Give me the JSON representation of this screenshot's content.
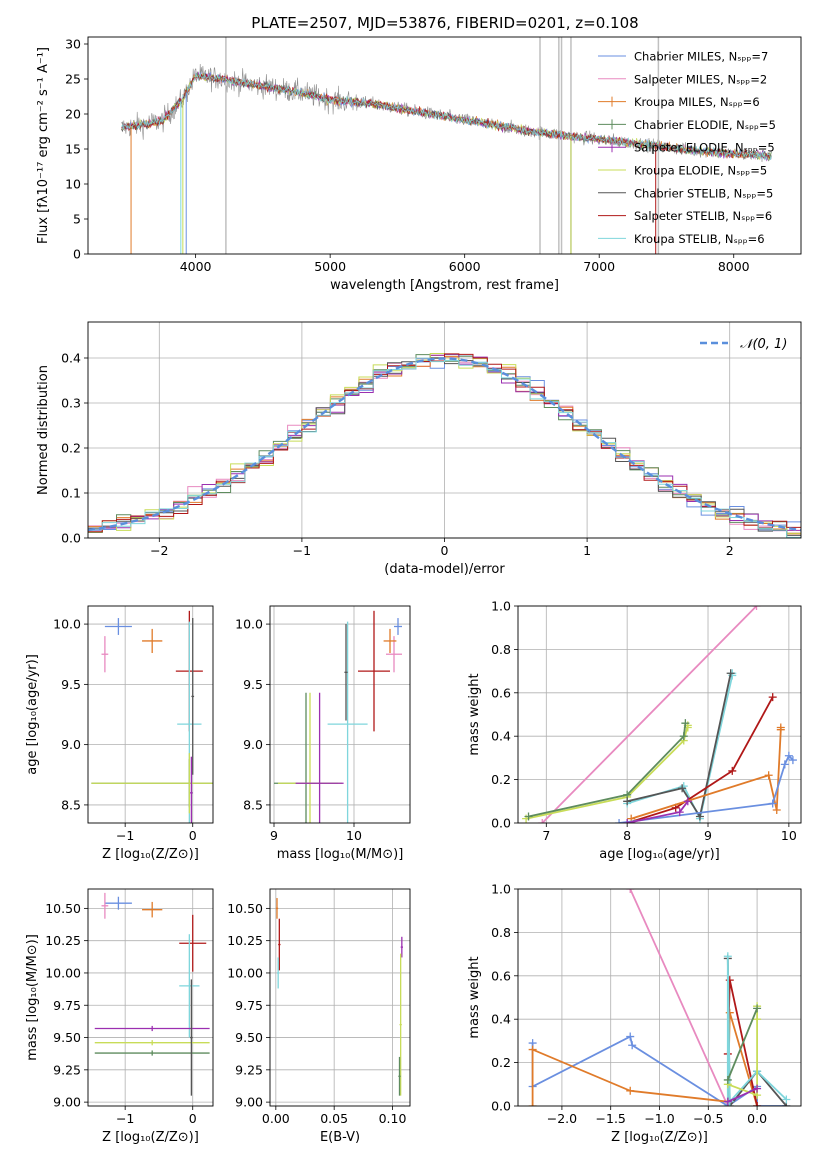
{
  "figure_title": "PLATE=2507, MJD=53876, FIBERID=0201, z=0.108",
  "colors": {
    "c0": "#6a8fe0",
    "c1": "#e88ac0",
    "c2": "#e07b2a",
    "c3": "#5e8c5e",
    "c4": "#9b2fb0",
    "c5": "#c8dc58",
    "c6": "#555555",
    "c7": "#b01818",
    "c8": "#7fd6dc",
    "c9": "#b8b8b8",
    "gauss": "#5a8fdc"
  },
  "chart_data": [
    {
      "id": "spectrum",
      "type": "line",
      "xlabel": "wavelength [Angstrom, rest frame]",
      "ylabel": "Flux [fλ10⁻¹⁷ erg cm⁻² s⁻¹ A⁻¹]",
      "xlim": [
        3200,
        8500
      ],
      "ylim": [
        0,
        31
      ],
      "xticks": [
        4000,
        5000,
        6000,
        7000,
        8000
      ],
      "yticks": [
        0,
        5,
        10,
        15,
        20,
        25,
        30
      ],
      "grid": false,
      "legend_position": "top-right",
      "series": [
        {
          "name": "Chabrier MILES, Nₛₚₚ=7",
          "color": "c0",
          "marker": "line"
        },
        {
          "name": "Salpeter MILES, Nₛₚₚ=2",
          "color": "c1",
          "marker": "line"
        },
        {
          "name": "Kroupa MILES, Nₛₚₚ=6",
          "color": "c2",
          "marker": "plus"
        },
        {
          "name": "Chabrier ELODIE, Nₛₚₚ=5",
          "color": "c3",
          "marker": "plus"
        },
        {
          "name": "Salpeter ELODIE, Nₛₚₚ=5",
          "color": "c4",
          "marker": "plus"
        },
        {
          "name": "Kroupa ELODIE, Nₛₚₚ=5",
          "color": "c5",
          "marker": "line"
        },
        {
          "name": "Chabrier STELIB, Nₛₚₚ=5",
          "color": "c6",
          "marker": "line"
        },
        {
          "name": "Salpeter STELIB, Nₛₚₚ=6",
          "color": "c7",
          "marker": "line"
        },
        {
          "name": "Kroupa STELIB, Nₛₚₚ=6",
          "color": "c8",
          "marker": "line"
        }
      ],
      "continuum": {
        "x": [
          3450,
          3600,
          3750,
          3900,
          4000,
          4200,
          4500,
          4800,
          5000,
          5300,
          5600,
          5900,
          6200,
          6500,
          6800,
          7100,
          7400,
          7700,
          8000,
          8280
        ],
        "y": [
          18,
          18.5,
          19,
          22,
          25.5,
          25,
          24,
          23,
          22,
          21.5,
          20.5,
          19.5,
          18.5,
          17.5,
          16.8,
          16.2,
          15.5,
          14.8,
          14.3,
          14
        ]
      },
      "data_range": [
        3450,
        8280
      ]
    },
    {
      "id": "residuals",
      "type": "area",
      "xlabel": "(data-model)/error",
      "ylabel": "Normed distribution",
      "xlim": [
        -2.5,
        2.5
      ],
      "ylim": [
        0,
        0.48
      ],
      "xticks": [
        -2,
        -1,
        0,
        1,
        2
      ],
      "yticks": [
        0,
        0.1,
        0.2,
        0.3,
        0.4
      ],
      "grid": true,
      "legend_position": "top-right",
      "gauss_label": "𝒩(0, 1)",
      "bin_width": 0.1,
      "histogram_colors": [
        "c0",
        "c1",
        "c2",
        "c3",
        "c4",
        "c5",
        "c6",
        "c7",
        "c8"
      ]
    },
    {
      "id": "age_vs_Z",
      "type": "scatter",
      "xlabel": "Z [log₁₀(Z/Z⊙)]",
      "ylabel": "age  [log₁₀(age/yr)]",
      "xlim": [
        -1.55,
        0.3
      ],
      "ylim": [
        8.35,
        10.15
      ],
      "xticks": [
        -1,
        0
      ],
      "yticks": [
        8.5,
        9.0,
        9.5,
        10.0
      ],
      "grid": true,
      "points": [
        {
          "c": "c0",
          "x": -1.1,
          "y": 9.98,
          "xerr": 0.2,
          "yerr": 0.07
        },
        {
          "c": "c1",
          "x": -1.3,
          "y": 9.75,
          "xerr": 0.05,
          "yerr": 0.15
        },
        {
          "c": "c2",
          "x": -0.6,
          "y": 9.86,
          "xerr": 0.15,
          "yerr": 0.1
        },
        {
          "c": "c7",
          "x": -0.05,
          "y": 9.61,
          "xerr": 0.2,
          "yerr": 0.5
        },
        {
          "c": "c8",
          "x": -0.05,
          "y": 9.17,
          "xerr": 0.18,
          "yerr": 0.85
        },
        {
          "c": "c3",
          "x": -0.05,
          "y": 8.68,
          "xerr": 1.45,
          "yerr": 0.2
        },
        {
          "c": "c5",
          "x": -0.05,
          "y": 8.68,
          "xerr": 1.45,
          "yerr": 0.25
        },
        {
          "c": "c6",
          "x": 0.0,
          "y": 9.4,
          "xerr": 0.02,
          "yerr": 0.65
        },
        {
          "c": "c4",
          "x": -0.02,
          "y": 8.6,
          "xerr": 0.02,
          "yerr": 0.3
        }
      ]
    },
    {
      "id": "age_vs_mass",
      "type": "scatter",
      "xlabel": "mass [log₁₀(M/M⊙)]",
      "ylabel": "",
      "xlim": [
        8.95,
        10.7
      ],
      "ylim": [
        8.35,
        10.15
      ],
      "xticks": [
        9,
        10
      ],
      "yticks": [
        8.5,
        9.0,
        9.5,
        10.0
      ],
      "grid": true,
      "points": [
        {
          "c": "c0",
          "x": 10.55,
          "y": 9.98,
          "xerr": 0.05,
          "yerr": 0.07
        },
        {
          "c": "c1",
          "x": 10.5,
          "y": 9.75,
          "xerr": 0.1,
          "yerr": 0.15
        },
        {
          "c": "c2",
          "x": 10.45,
          "y": 9.86,
          "xerr": 0.08,
          "yerr": 0.1
        },
        {
          "c": "c7",
          "x": 10.25,
          "y": 9.61,
          "xerr": 0.2,
          "yerr": 0.5
        },
        {
          "c": "c8",
          "x": 9.92,
          "y": 9.17,
          "xerr": 0.25,
          "yerr": 0.85
        },
        {
          "c": "c3",
          "x": 9.4,
          "y": 8.68,
          "xerr": 0.4,
          "yerr": 0.75
        },
        {
          "c": "c5",
          "x": 9.45,
          "y": 8.68,
          "xerr": 0.4,
          "yerr": 0.75
        },
        {
          "c": "c4",
          "x": 9.57,
          "y": 8.68,
          "xerr": 0.3,
          "yerr": 0.75
        },
        {
          "c": "c6",
          "x": 9.9,
          "y": 9.6,
          "xerr": 0.02,
          "yerr": 0.4
        }
      ]
    },
    {
      "id": "weight_vs_age",
      "type": "line",
      "xlabel": "age  [log₁₀(age/yr)]",
      "ylabel": "mass weight",
      "xlim": [
        6.65,
        10.15
      ],
      "ylim": [
        0,
        1
      ],
      "xticks": [
        7,
        8,
        9,
        10
      ],
      "yticks": [
        0.0,
        0.2,
        0.4,
        0.6,
        0.8,
        1.0
      ],
      "grid": true,
      "series": [
        {
          "c": "c1",
          "x": [
            6.95,
            9.6
          ],
          "y": [
            0.0,
            1.0
          ]
        },
        {
          "c": "c5",
          "x": [
            6.75,
            8.0,
            8.7,
            8.75,
            8.75
          ],
          "y": [
            0.02,
            0.12,
            0.38,
            0.45,
            0.44
          ]
        },
        {
          "c": "c3",
          "x": [
            6.78,
            8.0,
            8.7,
            8.72
          ],
          "y": [
            0.03,
            0.13,
            0.4,
            0.46
          ]
        },
        {
          "c": "c8",
          "x": [
            8.0,
            8.7,
            8.9,
            9.3,
            9.3
          ],
          "y": [
            0.09,
            0.17,
            0.02,
            0.68,
            0.69
          ]
        },
        {
          "c": "c6",
          "x": [
            8.0,
            8.68,
            8.9,
            9.28
          ],
          "y": [
            0.1,
            0.16,
            0.03,
            0.69
          ]
        },
        {
          "c": "c7",
          "x": [
            8.0,
            8.6,
            9.3,
            9.8
          ],
          "y": [
            0.0,
            0.07,
            0.24,
            0.58
          ]
        },
        {
          "c": "c2",
          "x": [
            8.05,
            9.75,
            9.85,
            9.9,
            9.9
          ],
          "y": [
            0.02,
            0.22,
            0.06,
            0.43,
            0.44
          ]
        },
        {
          "c": "c0",
          "x": [
            7.9,
            9.8,
            9.95,
            10.0,
            10.05
          ],
          "y": [
            0.0,
            0.09,
            0.27,
            0.31,
            0.29
          ]
        },
        {
          "c": "c4",
          "x": [
            8.0,
            8.65,
            8.75
          ],
          "y": [
            0.0,
            0.05,
            0.1
          ]
        }
      ]
    },
    {
      "id": "mass_vs_Z",
      "type": "scatter",
      "xlabel": "Z [log₁₀(Z/Z⊙)]",
      "ylabel": "mass [log₁₀(M/M⊙)]",
      "xlim": [
        -1.55,
        0.3
      ],
      "ylim": [
        8.97,
        10.65
      ],
      "xticks": [
        -1,
        0
      ],
      "yticks": [
        9.0,
        9.25,
        9.5,
        9.75,
        10.0,
        10.25,
        10.5
      ],
      "grid": true,
      "points": [
        {
          "c": "c0",
          "x": -1.1,
          "y": 10.54,
          "xerr": 0.2,
          "yerr": 0.05
        },
        {
          "c": "c1",
          "x": -1.3,
          "y": 10.52,
          "xerr": 0.05,
          "yerr": 0.1
        },
        {
          "c": "c2",
          "x": -0.6,
          "y": 10.49,
          "xerr": 0.15,
          "yerr": 0.06
        },
        {
          "c": "c7",
          "x": 0.0,
          "y": 10.23,
          "xerr": 0.2,
          "yerr": 0.22
        },
        {
          "c": "c8",
          "x": -0.05,
          "y": 9.9,
          "xerr": 0.15,
          "yerr": 0.4
        },
        {
          "c": "c4",
          "x": -0.6,
          "y": 9.57,
          "xerr": 0.85,
          "yerr": 0.02
        },
        {
          "c": "c5",
          "x": -0.6,
          "y": 9.46,
          "xerr": 0.85,
          "yerr": 0.02
        },
        {
          "c": "c3",
          "x": -0.6,
          "y": 9.38,
          "xerr": 0.85,
          "yerr": 0.02
        },
        {
          "c": "c6",
          "x": -0.02,
          "y": 9.5,
          "xerr": 0.02,
          "yerr": 0.45
        }
      ]
    },
    {
      "id": "mass_vs_ebv",
      "type": "scatter",
      "xlabel": "E(B-V)",
      "ylabel": "",
      "xlim": [
        -0.005,
        0.115
      ],
      "ylim": [
        8.97,
        10.65
      ],
      "xticks": [
        0.0,
        0.05,
        0.1
      ],
      "yticks": [
        9.0,
        9.25,
        9.5,
        9.75,
        10.0,
        10.25,
        10.5
      ],
      "grid": true,
      "points": [
        {
          "c": "c2",
          "x": 0.001,
          "y": 10.5,
          "xerr": 0.001,
          "yerr": 0.08
        },
        {
          "c": "c7",
          "x": 0.003,
          "y": 10.22,
          "xerr": 0.001,
          "yerr": 0.2
        },
        {
          "c": "c8",
          "x": 0.002,
          "y": 10.0,
          "xerr": 0.001,
          "yerr": 0.12
        },
        {
          "c": "c4",
          "x": 0.108,
          "y": 10.2,
          "xerr": 0.001,
          "yerr": 0.08
        },
        {
          "c": "c5",
          "x": 0.107,
          "y": 9.6,
          "xerr": 0.001,
          "yerr": 0.55
        },
        {
          "c": "c3",
          "x": 0.106,
          "y": 9.2,
          "xerr": 0.001,
          "yerr": 0.15
        }
      ]
    },
    {
      "id": "weight_vs_Z",
      "type": "line",
      "xlabel": "Z [log₁₀(Z/Z⊙)]",
      "ylabel": "mass weight",
      "xlim": [
        -2.45,
        0.45
      ],
      "ylim": [
        0,
        1
      ],
      "xticks": [
        -2.0,
        -1.5,
        -1.0,
        -0.5,
        0.0
      ],
      "yticks": [
        0.0,
        0.2,
        0.4,
        0.6,
        0.8,
        1.0
      ],
      "grid": true,
      "series": [
        {
          "c": "c1",
          "x": [
            -1.3,
            -0.3
          ],
          "y": [
            1.0,
            0.0
          ]
        },
        {
          "c": "c0",
          "x": [
            -2.3,
            -2.3,
            -1.3,
            -1.28,
            -0.3,
            0.0,
            0.0,
            0.3
          ],
          "y": [
            0.29,
            0.09,
            0.32,
            0.28,
            0.0,
            0.09,
            0.0,
            0.0
          ]
        },
        {
          "c": "c2",
          "x": [
            -2.3,
            -2.3,
            -1.3,
            -0.3,
            -0.28,
            0.0
          ],
          "y": [
            0.0,
            0.26,
            0.07,
            0.02,
            0.43,
            0.0
          ]
        },
        {
          "c": "c7",
          "x": [
            -0.3,
            -0.28,
            0.0
          ],
          "y": [
            0.24,
            0.58,
            0.0
          ]
        },
        {
          "c": "c6",
          "x": [
            -0.3,
            -0.28,
            0.0,
            0.3
          ],
          "y": [
            0.68,
            0.0,
            0.16,
            0.0
          ]
        },
        {
          "c": "c8",
          "x": [
            -0.3,
            -0.3,
            -0.28,
            0.0,
            0.3
          ],
          "y": [
            0.0,
            0.69,
            0.02,
            0.16,
            0.03
          ]
        },
        {
          "c": "c5",
          "x": [
            -0.3,
            0.0,
            0.0,
            0.0
          ],
          "y": [
            0.1,
            0.05,
            0.46,
            0.4
          ]
        },
        {
          "c": "c3",
          "x": [
            -0.3,
            0.0
          ],
          "y": [
            0.12,
            0.45
          ]
        },
        {
          "c": "c4",
          "x": [
            -0.3,
            0.0
          ],
          "y": [
            0.02,
            0.08
          ]
        }
      ]
    }
  ]
}
